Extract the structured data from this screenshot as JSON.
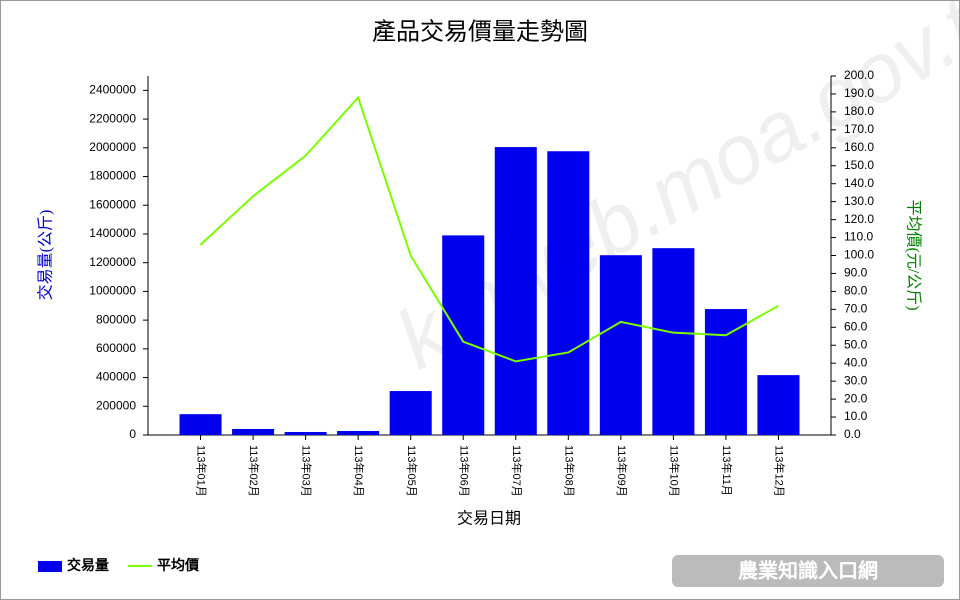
{
  "chart_data": {
    "type": "bar",
    "title": "產品交易價量走勢圖",
    "x_label": "交易日期",
    "y_label": "交易量(公斤)",
    "y2_label": "平均價(元/公斤)",
    "categories": [
      "113年01月",
      "113年02月",
      "113年03月",
      "113年04月",
      "113年05月",
      "113年06月",
      "113年07月",
      "113年08月",
      "113年09月",
      "113年10月",
      "113年11月",
      "113年12月"
    ],
    "series": [
      {
        "name": "交易量",
        "type": "bar",
        "color": "#0000ee",
        "axis": "y",
        "values": [
          145000,
          42000,
          21000,
          28000,
          306000,
          1390000,
          2005000,
          1976000,
          1252000,
          1301000,
          877000,
          417000
        ]
      },
      {
        "name": "平均價",
        "type": "line",
        "color": "#7cfc00",
        "axis": "y2",
        "values": [
          106,
          133,
          155.6,
          188,
          100,
          52,
          41,
          46,
          63,
          57,
          55.6,
          72
        ]
      }
    ],
    "ylim": [
      0,
      2500000
    ],
    "yticks": [
      0,
      200000,
      400000,
      600000,
      800000,
      1000000,
      1200000,
      1400000,
      1600000,
      1800000,
      2000000,
      2200000,
      2400000
    ],
    "y2lim": [
      0,
      200
    ],
    "y2ticks": [
      {
        "value": 0,
        "label": "0.0"
      },
      {
        "value": 10,
        "label": "10.0"
      },
      {
        "value": 20,
        "label": "20.0"
      },
      {
        "value": 30,
        "label": "30.0"
      },
      {
        "value": 40,
        "label": "40.0"
      },
      {
        "value": 50,
        "label": "50.0"
      },
      {
        "value": 60,
        "label": "60.0"
      },
      {
        "value": 70,
        "label": "70.0"
      },
      {
        "value": 80,
        "label": "80.0"
      },
      {
        "value": 90,
        "label": "90.0"
      },
      {
        "value": 100,
        "label": "100.0"
      },
      {
        "value": 110,
        "label": "110.0"
      },
      {
        "value": 120,
        "label": "120.0"
      },
      {
        "value": 130,
        "label": "130.0"
      },
      {
        "value": 140,
        "label": "140.0"
      },
      {
        "value": 150,
        "label": "150.0"
      },
      {
        "value": 160,
        "label": "160.0"
      },
      {
        "value": 170,
        "label": "170.0"
      },
      {
        "value": 180,
        "label": "180.0"
      },
      {
        "value": 190,
        "label": "190.0"
      },
      {
        "value": 200,
        "label": "200.0"
      }
    ],
    "watermark": "kmweb.moa.gov.tw",
    "logo": "農業知識入口網"
  }
}
